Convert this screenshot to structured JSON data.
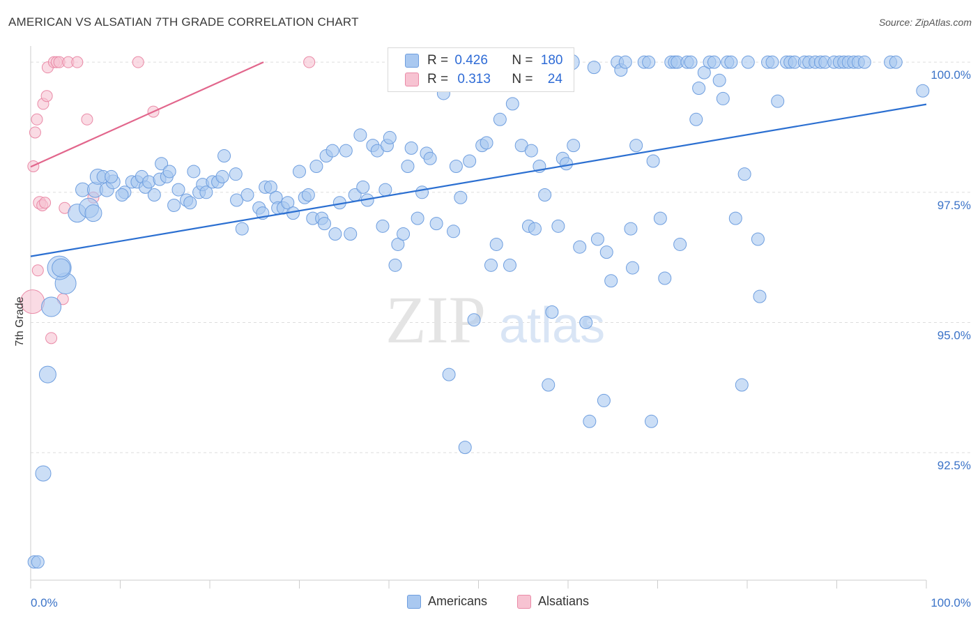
{
  "title": "AMERICAN VS ALSATIAN 7TH GRADE CORRELATION CHART",
  "source": "Source: ZipAtlas.com",
  "watermark": {
    "zip": "ZIP",
    "atlas": "atlas"
  },
  "legend": {
    "americans": {
      "r_label": "R =",
      "r_value": "0.426",
      "n_label": "N =",
      "n_value": "180"
    },
    "alsatians": {
      "r_label": "R =",
      "r_value": "0.313",
      "n_label": "N =",
      "n_value": "24"
    }
  },
  "bottom_legend": {
    "americans": "Americans",
    "alsatians": "Alsatians"
  },
  "colors": {
    "americans_fill": "#a9c8f0",
    "americans_stroke": "#6e9edf",
    "americans_line": "#2b6fd1",
    "alsatians_fill": "#f7c3d2",
    "alsatians_stroke": "#ea8aa7",
    "alsatians_line": "#e2668c",
    "tick_text": "#3b73c8",
    "grid": "#dddddd"
  },
  "chart_data": {
    "type": "scatter",
    "title": "AMERICAN VS ALSATIAN 7TH GRADE CORRELATION CHART",
    "xlabel": "",
    "ylabel": "7th Grade",
    "x_tick_labels": [
      "0.0%",
      "100.0%"
    ],
    "y_tick_labels": [
      "100.0%",
      "97.5%",
      "95.0%",
      "92.5%"
    ],
    "y_ticks": [
      100.0,
      97.5,
      95.0,
      92.5
    ],
    "xlim": [
      0,
      100
    ],
    "ylim": [
      90.05,
      100.23
    ],
    "grid": true,
    "legend_position": "top-center",
    "series": [
      {
        "name": "Americans",
        "trendline": {
          "x": [
            0,
            100
          ],
          "y": [
            96.27,
            99.19
          ]
        },
        "points": [
          [
            0.4,
            90.4,
            9
          ],
          [
            0.8,
            90.4,
            9
          ],
          [
            1.4,
            92.1,
            11
          ],
          [
            1.9,
            94.0,
            12
          ],
          [
            2.3,
            95.3,
            14
          ],
          [
            3.9,
            95.75,
            15
          ],
          [
            3.2,
            96.05,
            17
          ],
          [
            3.4,
            96.05,
            13
          ],
          [
            5.2,
            97.1,
            13
          ],
          [
            6.5,
            97.2,
            14
          ],
          [
            7.0,
            97.1,
            12
          ],
          [
            5.8,
            97.55,
            10
          ],
          [
            7.2,
            97.55,
            11
          ],
          [
            8.5,
            97.55,
            10
          ],
          [
            7.5,
            97.8,
            11
          ],
          [
            9.2,
            97.7,
            10
          ],
          [
            8.1,
            97.8,
            9
          ],
          [
            9.0,
            97.8,
            9
          ],
          [
            10.5,
            97.5,
            9
          ],
          [
            10.2,
            97.45,
            9
          ],
          [
            11.3,
            97.7,
            9
          ],
          [
            11.9,
            97.7,
            9
          ],
          [
            12.4,
            97.8,
            9
          ],
          [
            12.8,
            97.6,
            9
          ],
          [
            13.2,
            97.7,
            9
          ],
          [
            13.8,
            97.45,
            9
          ],
          [
            14.4,
            97.75,
            9
          ],
          [
            14.6,
            98.05,
            9
          ],
          [
            15.2,
            97.8,
            9
          ],
          [
            15.5,
            97.9,
            9
          ],
          [
            16.5,
            97.55,
            9
          ],
          [
            16.0,
            97.25,
            9
          ],
          [
            17.4,
            97.35,
            9
          ],
          [
            17.8,
            97.3,
            9
          ],
          [
            18.2,
            97.9,
            9
          ],
          [
            18.8,
            97.5,
            9
          ],
          [
            19.2,
            97.65,
            9
          ],
          [
            19.6,
            97.5,
            9
          ],
          [
            20.3,
            97.7,
            9
          ],
          [
            20.9,
            97.7,
            9
          ],
          [
            21.4,
            97.8,
            9
          ],
          [
            21.6,
            98.2,
            9
          ],
          [
            22.9,
            97.85,
            9
          ],
          [
            23.0,
            97.35,
            9
          ],
          [
            23.6,
            96.8,
            9
          ],
          [
            24.2,
            97.45,
            9
          ],
          [
            25.5,
            97.2,
            9
          ],
          [
            25.9,
            97.1,
            9
          ],
          [
            26.2,
            97.6,
            9
          ],
          [
            26.8,
            97.6,
            9
          ],
          [
            27.4,
            97.4,
            9
          ],
          [
            27.6,
            97.2,
            9
          ],
          [
            28.2,
            97.2,
            9
          ],
          [
            28.7,
            97.3,
            9
          ],
          [
            29.3,
            97.1,
            9
          ],
          [
            30.0,
            97.9,
            9
          ],
          [
            30.6,
            97.4,
            9
          ],
          [
            31.0,
            97.45,
            9
          ],
          [
            31.5,
            97.0,
            9
          ],
          [
            31.9,
            98.0,
            9
          ],
          [
            32.5,
            97.0,
            9
          ],
          [
            32.8,
            96.9,
            9
          ],
          [
            33.0,
            98.2,
            9
          ],
          [
            33.7,
            98.3,
            9
          ],
          [
            34.0,
            96.7,
            9
          ],
          [
            34.5,
            97.3,
            9
          ],
          [
            35.2,
            98.3,
            9
          ],
          [
            35.7,
            96.7,
            9
          ],
          [
            36.2,
            97.45,
            9
          ],
          [
            36.8,
            98.6,
            9
          ],
          [
            37.1,
            97.6,
            9
          ],
          [
            37.6,
            97.35,
            9
          ],
          [
            38.2,
            98.4,
            9
          ],
          [
            38.7,
            98.3,
            9
          ],
          [
            39.3,
            96.85,
            9
          ],
          [
            39.6,
            97.55,
            9
          ],
          [
            39.8,
            98.4,
            9
          ],
          [
            40.1,
            98.55,
            9
          ],
          [
            40.7,
            96.1,
            9
          ],
          [
            41.0,
            96.5,
            9
          ],
          [
            41.6,
            96.7,
            9
          ],
          [
            42.1,
            98.0,
            9
          ],
          [
            42.5,
            98.35,
            9
          ],
          [
            43.2,
            97.0,
            9
          ],
          [
            43.7,
            97.5,
            9
          ],
          [
            44.2,
            98.25,
            9
          ],
          [
            44.6,
            98.15,
            9
          ],
          [
            45.3,
            96.9,
            9
          ],
          [
            46.1,
            99.4,
            9
          ],
          [
            46.7,
            94.0,
            9
          ],
          [
            47.2,
            96.75,
            9
          ],
          [
            47.5,
            98.0,
            9
          ],
          [
            48.0,
            97.4,
            9
          ],
          [
            48.5,
            92.6,
            9
          ],
          [
            49.0,
            98.1,
            9
          ],
          [
            49.5,
            95.05,
            9
          ],
          [
            50.4,
            98.4,
            9
          ],
          [
            50.9,
            98.45,
            9
          ],
          [
            51.4,
            96.1,
            9
          ],
          [
            52.0,
            96.5,
            9
          ],
          [
            52.4,
            98.9,
            9
          ],
          [
            53.5,
            96.1,
            9
          ],
          [
            53.8,
            99.2,
            9
          ],
          [
            54.1,
            99.9,
            9
          ],
          [
            54.8,
            98.4,
            9
          ],
          [
            55.6,
            96.85,
            9
          ],
          [
            55.9,
            98.3,
            9
          ],
          [
            56.3,
            96.8,
            9
          ],
          [
            56.8,
            98.0,
            9
          ],
          [
            57.4,
            97.45,
            9
          ],
          [
            57.8,
            93.8,
            9
          ],
          [
            58.2,
            95.2,
            9
          ],
          [
            58.9,
            96.85,
            9
          ],
          [
            59.4,
            98.15,
            9
          ],
          [
            59.8,
            98.05,
            9
          ],
          [
            60.4,
            100.0,
            11
          ],
          [
            60.6,
            98.4,
            9
          ],
          [
            61.3,
            96.45,
            9
          ],
          [
            62.0,
            95.0,
            9
          ],
          [
            62.4,
            93.1,
            9
          ],
          [
            62.9,
            99.9,
            9
          ],
          [
            63.3,
            96.6,
            9
          ],
          [
            64.0,
            93.5,
            9
          ],
          [
            64.3,
            96.35,
            9
          ],
          [
            64.8,
            95.8,
            9
          ],
          [
            65.5,
            100.0,
            9
          ],
          [
            65.9,
            99.85,
            9
          ],
          [
            66.4,
            100.0,
            9
          ],
          [
            67.0,
            96.8,
            9
          ],
          [
            67.2,
            96.05,
            9
          ],
          [
            67.6,
            98.4,
            9
          ],
          [
            68.5,
            100.0,
            9
          ],
          [
            69.0,
            100.0,
            9
          ],
          [
            69.3,
            93.1,
            9
          ],
          [
            69.5,
            98.1,
            9
          ],
          [
            70.3,
            97.0,
            9
          ],
          [
            70.8,
            95.85,
            9
          ],
          [
            71.5,
            100.0,
            9
          ],
          [
            71.9,
            100.0,
            9
          ],
          [
            72.2,
            100.0,
            9
          ],
          [
            72.5,
            96.5,
            9
          ],
          [
            73.3,
            100.0,
            9
          ],
          [
            73.7,
            100.0,
            9
          ],
          [
            74.3,
            98.9,
            9
          ],
          [
            74.6,
            99.5,
            9
          ],
          [
            75.2,
            99.8,
            9
          ],
          [
            75.8,
            100.0,
            9
          ],
          [
            76.3,
            100.0,
            9
          ],
          [
            76.9,
            99.65,
            9
          ],
          [
            77.3,
            99.3,
            9
          ],
          [
            77.8,
            100.0,
            9
          ],
          [
            78.2,
            100.0,
            9
          ],
          [
            78.7,
            97.0,
            9
          ],
          [
            79.4,
            93.8,
            9
          ],
          [
            79.7,
            97.85,
            9
          ],
          [
            80.1,
            100.0,
            9
          ],
          [
            81.2,
            96.6,
            9
          ],
          [
            81.4,
            95.5,
            9
          ],
          [
            82.3,
            100.0,
            9
          ],
          [
            82.8,
            100.0,
            9
          ],
          [
            83.4,
            99.25,
            9
          ],
          [
            84.4,
            100.0,
            9
          ],
          [
            84.8,
            100.0,
            9
          ],
          [
            85.3,
            100.0,
            9
          ],
          [
            86.4,
            100.0,
            9
          ],
          [
            86.9,
            100.0,
            9
          ],
          [
            87.6,
            100.0,
            9
          ],
          [
            88.2,
            100.0,
            9
          ],
          [
            88.7,
            100.0,
            9
          ],
          [
            89.7,
            100.0,
            9
          ],
          [
            90.3,
            100.0,
            9
          ],
          [
            90.8,
            100.0,
            9
          ],
          [
            91.3,
            100.0,
            9
          ],
          [
            91.9,
            100.0,
            9
          ],
          [
            92.4,
            100.0,
            9
          ],
          [
            93.1,
            100.0,
            9
          ],
          [
            96.0,
            100.0,
            9
          ],
          [
            96.6,
            100.0,
            9
          ],
          [
            99.6,
            99.45,
            9
          ]
        ]
      },
      {
        "name": "Alsatians",
        "trendline": {
          "x": [
            0,
            26
          ],
          "y": [
            97.99,
            100.0
          ]
        },
        "points": [
          [
            0.2,
            95.4,
            17
          ],
          [
            0.3,
            98.0,
            8
          ],
          [
            0.5,
            98.65,
            8
          ],
          [
            0.7,
            98.9,
            8
          ],
          [
            0.8,
            96.0,
            8
          ],
          [
            1.0,
            97.3,
            9
          ],
          [
            1.3,
            97.25,
            8
          ],
          [
            1.4,
            99.2,
            8
          ],
          [
            1.6,
            97.3,
            8
          ],
          [
            1.8,
            99.35,
            8
          ],
          [
            1.9,
            99.9,
            8
          ],
          [
            2.3,
            94.7,
            8
          ],
          [
            2.6,
            100.0,
            8
          ],
          [
            2.9,
            100.0,
            8
          ],
          [
            3.2,
            100.0,
            8
          ],
          [
            3.6,
            95.45,
            8
          ],
          [
            3.8,
            97.2,
            8
          ],
          [
            4.2,
            100.0,
            8
          ],
          [
            5.2,
            100.0,
            8
          ],
          [
            6.3,
            98.9,
            8
          ],
          [
            7.0,
            97.4,
            8
          ],
          [
            12.0,
            100.0,
            8
          ],
          [
            13.7,
            99.05,
            8
          ],
          [
            31.1,
            100.0,
            8
          ]
        ]
      }
    ]
  }
}
